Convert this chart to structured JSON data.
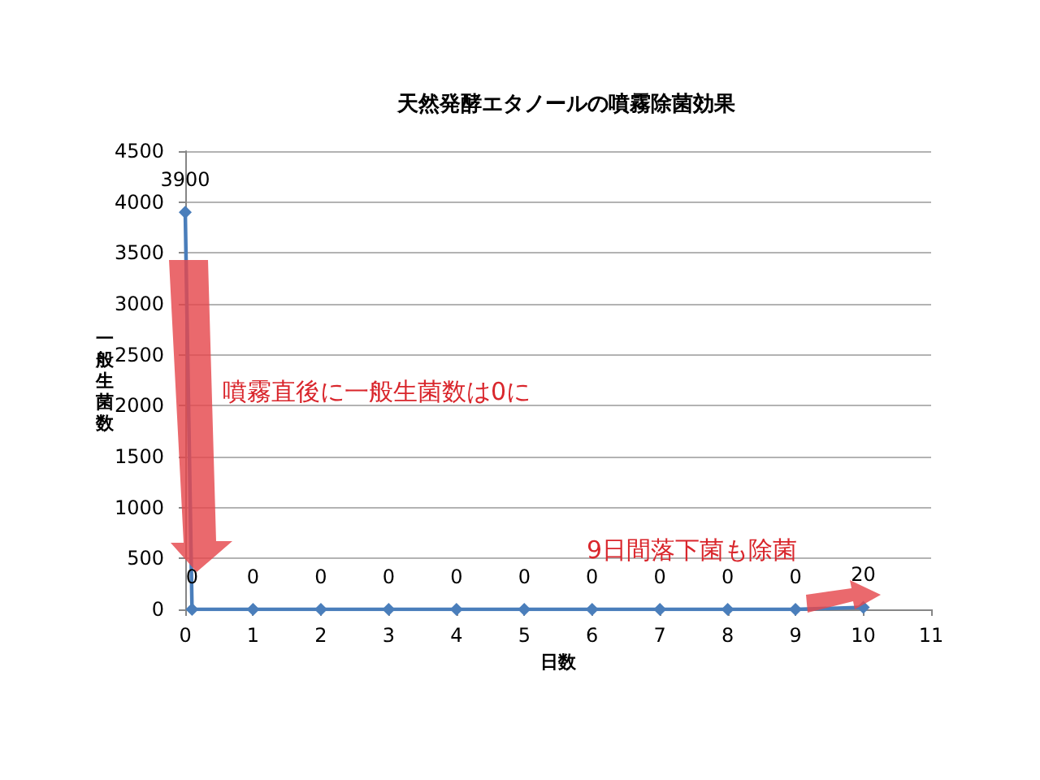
{
  "chart_data": {
    "type": "line",
    "title": "天然発酵エタノールの噴霧除菌効果",
    "xlabel": "日数",
    "ylabel": "一般生菌数",
    "x": [
      0,
      0.1,
      1,
      2,
      3,
      4,
      5,
      6,
      7,
      8,
      9,
      10
    ],
    "values": [
      3900,
      0,
      0,
      0,
      0,
      0,
      0,
      0,
      0,
      0,
      0,
      20
    ],
    "color": "#4a7ebb",
    "xlim": [
      0,
      11
    ],
    "xticks": [
      0,
      1,
      2,
      3,
      4,
      5,
      6,
      7,
      8,
      9,
      10,
      11
    ],
    "ylim": [
      0,
      4500
    ],
    "yticks": [
      0,
      500,
      1000,
      1500,
      2000,
      2500,
      3000,
      3500,
      4000,
      4500
    ],
    "grid": "y",
    "marker": "diamond",
    "line_style": "solid",
    "data_labels": true,
    "annotations": [
      "噴霧直後に一般生菌数は0に",
      "9日間落下菌も除菌"
    ]
  }
}
